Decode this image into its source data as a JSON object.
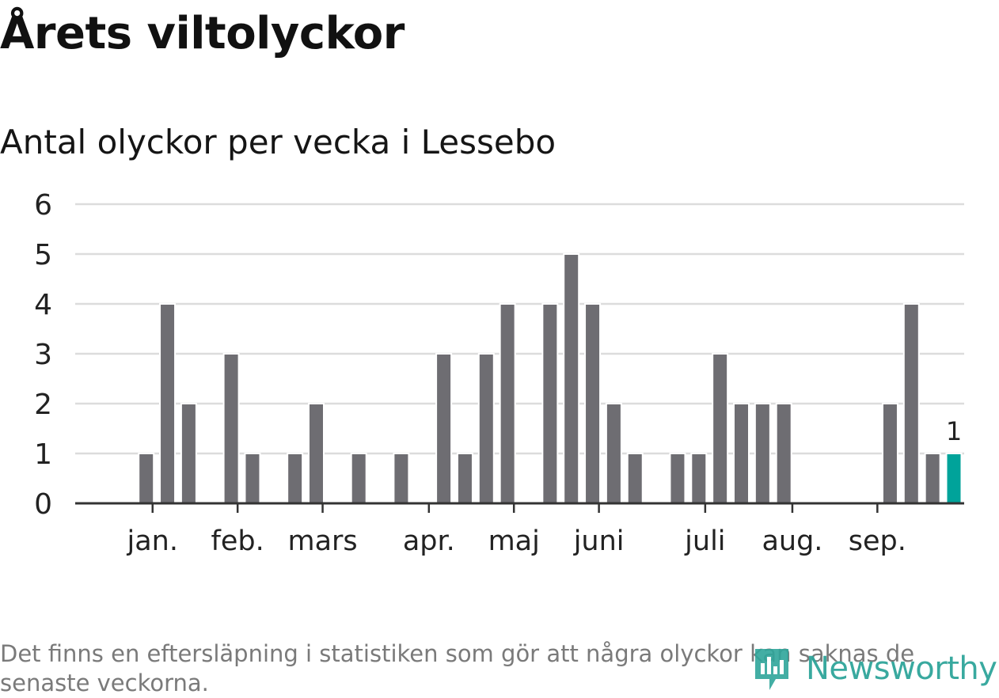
{
  "title": "Årets viltolyckor",
  "subtitle": "Antal olyckor per vecka i Lessebo",
  "footnote": "Det finns en eftersläpning i statistiken som gör att några olyckor kan saknas de senaste veckorna.",
  "brand": "Newsworthy",
  "colors": {
    "bar": "#6e6d72",
    "highlight": "#00a39a",
    "grid": "#dcdcdc",
    "axis": "#333333",
    "brand": "#2fa59a"
  },
  "chart_data": {
    "type": "bar",
    "ylim": [
      0,
      6
    ],
    "yticks": [
      0,
      1,
      2,
      3,
      4,
      5,
      6
    ],
    "weeks": [
      1,
      2,
      3,
      4,
      5,
      6,
      7,
      8,
      9,
      10,
      11,
      12,
      13,
      14,
      15,
      16,
      17,
      18,
      19,
      20,
      21,
      22,
      23,
      24,
      25,
      26,
      27,
      28,
      29,
      30,
      31,
      32,
      33,
      34,
      35,
      36,
      37,
      38,
      39,
      40,
      41,
      42
    ],
    "values": [
      0,
      0,
      1,
      4,
      2,
      0,
      3,
      1,
      0,
      1,
      2,
      0,
      1,
      0,
      1,
      0,
      3,
      1,
      3,
      4,
      0,
      4,
      5,
      4,
      2,
      1,
      0,
      1,
      1,
      3,
      2,
      2,
      2,
      0,
      0,
      0,
      0,
      2,
      4,
      1,
      1,
      0
    ],
    "highlight_week": 41,
    "highlight_label": "1",
    "month_labels": [
      {
        "label": "jan.",
        "week": 3.3
      },
      {
        "label": "feb.",
        "week": 7.3
      },
      {
        "label": "mars",
        "week": 11.3
      },
      {
        "label": "apr.",
        "week": 16.3
      },
      {
        "label": "maj",
        "week": 20.3
      },
      {
        "label": "juni",
        "week": 24.3
      },
      {
        "label": "juli",
        "week": 29.3
      },
      {
        "label": "aug.",
        "week": 33.4
      },
      {
        "label": "sep.",
        "week": 37.4
      }
    ]
  }
}
